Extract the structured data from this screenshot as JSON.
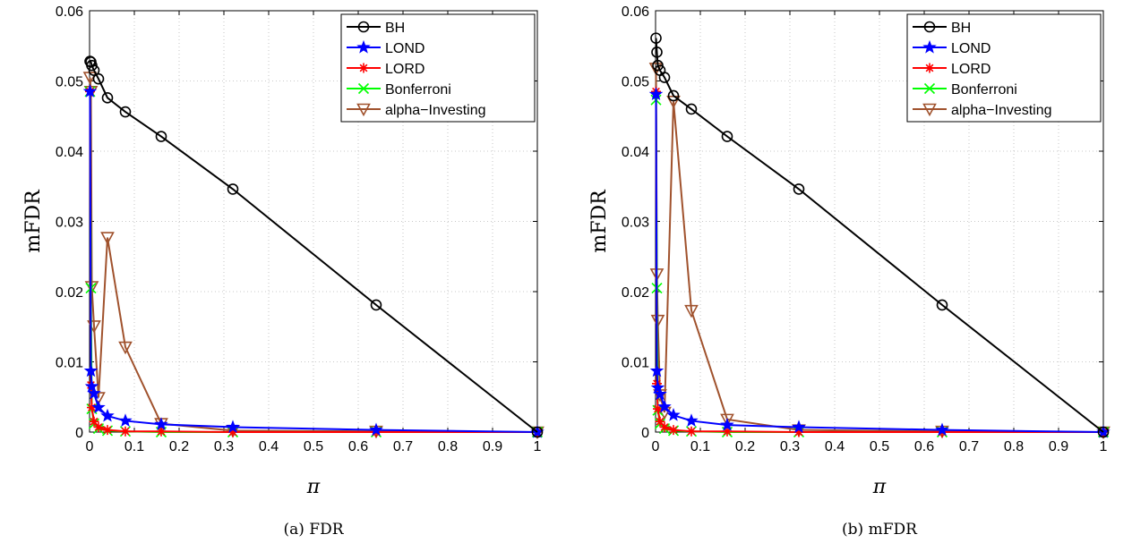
{
  "chart_data": [
    {
      "type": "line",
      "caption": "(a) FDR",
      "xlabel": "π",
      "ylabel": "mFDR",
      "xlim": [
        0,
        1
      ],
      "ylim": [
        0,
        0.06
      ],
      "xticks": [
        "0",
        "0.1",
        "0.2",
        "0.3",
        "0.4",
        "0.5",
        "0.6",
        "0.7",
        "0.8",
        "0.9",
        "1"
      ],
      "yticks": [
        "0",
        "0.01",
        "0.02",
        "0.03",
        "0.04",
        "0.05",
        "0.06"
      ],
      "grid": true,
      "legend_position": "top-right",
      "series": [
        {
          "name": "BH",
          "color": "#000000",
          "marker": "circle",
          "x": [
            0.001,
            0.003,
            0.005,
            0.01,
            0.02,
            0.04,
            0.08,
            0.16,
            0.32,
            0.64,
            1.0
          ],
          "y": [
            0.0528,
            0.0527,
            0.0522,
            0.0515,
            0.0503,
            0.0476,
            0.0456,
            0.0421,
            0.0346,
            0.0181,
            0.0
          ]
        },
        {
          "name": "LOND",
          "color": "#0000ff",
          "marker": "star",
          "x": [
            0.001,
            0.003,
            0.005,
            0.01,
            0.02,
            0.04,
            0.08,
            0.16,
            0.32,
            0.64,
            1.0
          ],
          "y": [
            0.0485,
            0.0087,
            0.0065,
            0.0055,
            0.0035,
            0.0023,
            0.0016,
            0.0011,
            0.0007,
            0.0003,
            0.0
          ]
        },
        {
          "name": "LORD",
          "color": "#ff0000",
          "marker": "asterisk",
          "x": [
            0.001,
            0.003,
            0.005,
            0.01,
            0.02,
            0.04,
            0.08,
            0.16,
            0.32,
            0.64,
            1.0
          ],
          "y": [
            0.0485,
            0.0067,
            0.0035,
            0.0015,
            0.0007,
            0.0003,
            0.0001,
            0.0001,
            0.0,
            0.0,
            0.0
          ]
        },
        {
          "name": "Bonferroni",
          "color": "#00ff00",
          "marker": "x",
          "x": [
            0.001,
            0.003,
            0.005,
            0.01,
            0.02,
            0.04,
            0.08,
            0.16,
            0.32,
            0.64,
            1.0
          ],
          "y": [
            0.0485,
            0.0205,
            0.0033,
            0.0012,
            0.0005,
            0.0002,
            0.0001,
            0.0,
            0.0,
            0.0,
            0.0
          ]
        },
        {
          "name": "alpha−Investing",
          "color": "#a0522d",
          "marker": "triangle-down",
          "x": [
            0.001,
            0.003,
            0.005,
            0.01,
            0.02,
            0.04,
            0.08,
            0.16,
            0.32,
            0.64,
            1.0
          ],
          "y": [
            0.0505,
            0.0485,
            0.0207,
            0.0151,
            0.0049,
            0.0277,
            0.0121,
            0.0012,
            0.0002,
            0.0001,
            0.0
          ]
        }
      ]
    },
    {
      "type": "line",
      "caption": "(b) mFDR",
      "xlabel": "π",
      "ylabel": "mFDR",
      "xlim": [
        0,
        1
      ],
      "ylim": [
        0,
        0.06
      ],
      "xticks": [
        "0",
        "0.1",
        "0.2",
        "0.3",
        "0.4",
        "0.5",
        "0.6",
        "0.7",
        "0.8",
        "0.9",
        "1"
      ],
      "yticks": [
        "0",
        "0.01",
        "0.02",
        "0.03",
        "0.04",
        "0.05",
        "0.06"
      ],
      "grid": true,
      "legend_position": "top-right",
      "series": [
        {
          "name": "BH",
          "color": "#000000",
          "marker": "circle",
          "x": [
            0.001,
            0.003,
            0.005,
            0.01,
            0.02,
            0.04,
            0.08,
            0.16,
            0.32,
            0.64,
            1.0
          ],
          "y": [
            0.0561,
            0.0541,
            0.0522,
            0.0515,
            0.0505,
            0.0479,
            0.046,
            0.0421,
            0.0346,
            0.0181,
            0.0
          ]
        },
        {
          "name": "LOND",
          "color": "#0000ff",
          "marker": "star",
          "x": [
            0.001,
            0.003,
            0.005,
            0.01,
            0.02,
            0.04,
            0.08,
            0.16,
            0.32,
            0.64,
            1.0
          ],
          "y": [
            0.0481,
            0.0087,
            0.0063,
            0.0054,
            0.0036,
            0.0024,
            0.0016,
            0.001,
            0.0007,
            0.0003,
            0.0
          ]
        },
        {
          "name": "LORD",
          "color": "#ff0000",
          "marker": "asterisk",
          "x": [
            0.001,
            0.003,
            0.005,
            0.01,
            0.02,
            0.04,
            0.08,
            0.16,
            0.32,
            0.64,
            1.0
          ],
          "y": [
            0.0485,
            0.0069,
            0.0033,
            0.0015,
            0.0007,
            0.0003,
            0.0001,
            0.0001,
            0.0,
            0.0,
            0.0
          ]
        },
        {
          "name": "Bonferroni",
          "color": "#00ff00",
          "marker": "x",
          "x": [
            0.001,
            0.003,
            0.005,
            0.01,
            0.02,
            0.04,
            0.08,
            0.16,
            0.32,
            0.64,
            1.0
          ],
          "y": [
            0.0473,
            0.0205,
            0.0031,
            0.0012,
            0.0005,
            0.0002,
            0.0001,
            0.0,
            0.0,
            0.0,
            0.0
          ]
        },
        {
          "name": "alpha−Investing",
          "color": "#a0522d",
          "marker": "triangle-down",
          "x": [
            0.001,
            0.003,
            0.005,
            0.01,
            0.02,
            0.04,
            0.08,
            0.16,
            0.32,
            0.64,
            1.0
          ],
          "y": [
            0.0518,
            0.0225,
            0.0159,
            0.0053,
            0.0028,
            0.0471,
            0.0173,
            0.0018,
            0.0003,
            0.0001,
            0.0
          ]
        }
      ]
    }
  ]
}
